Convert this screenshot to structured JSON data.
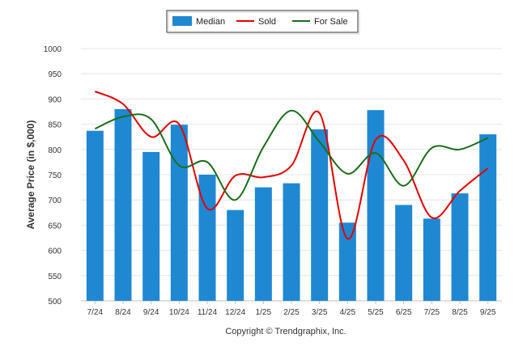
{
  "chart_data": {
    "type": "bar",
    "title": "",
    "xlabel": "",
    "ylabel": "Average Price (in $,000)",
    "ylim": [
      500,
      1000
    ],
    "yticks": [
      500,
      550,
      600,
      650,
      700,
      750,
      800,
      850,
      900,
      950,
      1000
    ],
    "grid": true,
    "legend_position": "top-center",
    "categories": [
      "7/24",
      "8/24",
      "9/24",
      "10/24",
      "11/24",
      "12/24",
      "1/25",
      "2/25",
      "3/25",
      "4/25",
      "5/25",
      "6/25",
      "7/25",
      "8/25",
      "9/25"
    ],
    "series": [
      {
        "name": "Median",
        "type": "bar",
        "color": "#1f88d2",
        "values": [
          837,
          880,
          795,
          849,
          750,
          680,
          725,
          733,
          840,
          655,
          878,
          690,
          663,
          713,
          830
        ]
      },
      {
        "name": "Sold",
        "type": "line",
        "color": "#e60000",
        "values": [
          915,
          890,
          825,
          850,
          683,
          748,
          745,
          768,
          872,
          623,
          819,
          778,
          665,
          718,
          763
        ]
      },
      {
        "name": "For Sale",
        "type": "line",
        "color": "#1a6e1a",
        "values": [
          841,
          865,
          860,
          768,
          775,
          700,
          805,
          877,
          815,
          752,
          793,
          728,
          803,
          800,
          823
        ]
      }
    ],
    "footer": "Copyright © Trendgraphix, Inc."
  }
}
